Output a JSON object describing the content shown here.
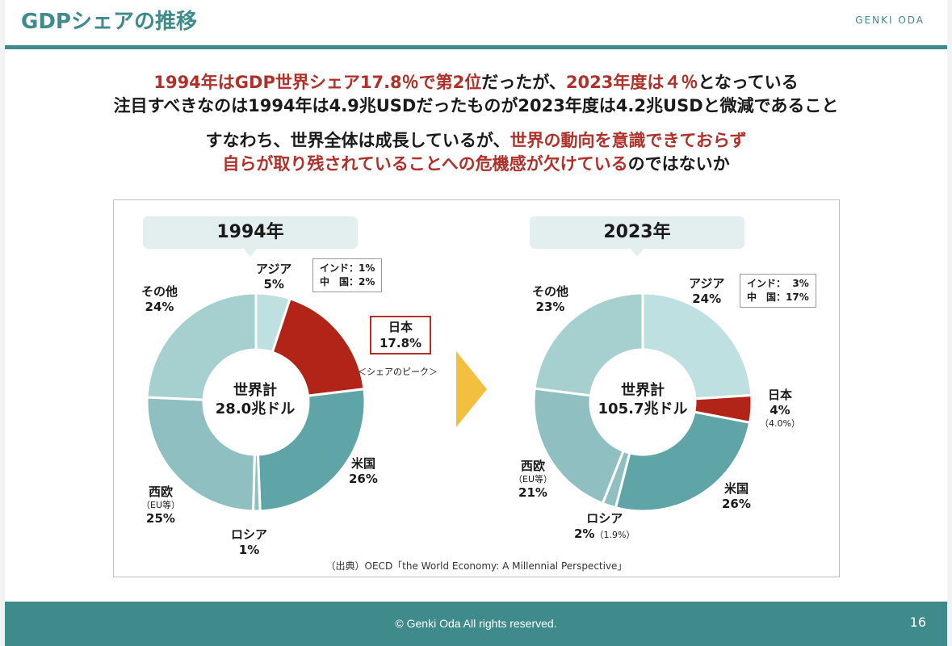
{
  "header": {
    "title": "GDPシェアの推移",
    "brand": "GENKI ODA"
  },
  "message": {
    "line1": [
      {
        "t": "1994年はGDP世界シェア17.8％で第2位",
        "red": true
      },
      {
        "t": "だったが、",
        "red": false
      },
      {
        "t": "2023年度は４％",
        "red": true
      },
      {
        "t": "となっている",
        "red": false
      }
    ],
    "line2": "注目すべきなのは1994年は4.9兆USDだったものが2023年度は4.2兆USDと微減であること",
    "line3": [
      {
        "t": "すなわち、世界全体は成長しているが、",
        "red": false
      },
      {
        "t": "世界の動向を意識できておらず",
        "red": true
      }
    ],
    "line4": [
      {
        "t": "自らが取り残されていることへの危機感が欠けている",
        "red": true
      },
      {
        "t": "のではないか",
        "red": false
      }
    ]
  },
  "colors": {
    "accent": "#3f8a8a",
    "japan": "#b22418",
    "arrow": "#f2bf3e"
  },
  "chart_data": [
    {
      "type": "pie",
      "donut": true,
      "title": "1994年",
      "center_label": "世界計",
      "center_value": "28.0兆ドル",
      "slices": [
        {
          "name": "アジア",
          "value": 5,
          "label": "5%",
          "color": "#bfe0e0"
        },
        {
          "name": "日本",
          "value": 17.8,
          "label": "17.8%",
          "color": "#b22418"
        },
        {
          "name": "米国",
          "value": 26,
          "label": "26%",
          "color": "#5fa5a8"
        },
        {
          "name": "ロシア",
          "value": 1,
          "label": "1%",
          "color": "#8fbfc0"
        },
        {
          "name": "西欧",
          "sub": "（EU等）",
          "value": 25,
          "label": "25%",
          "color": "#8fbfc0"
        },
        {
          "name": "その他",
          "value": 24,
          "label": "24%",
          "color": "#a6cfd0"
        }
      ],
      "note": "インド：1%\n中　国：2%",
      "japan_note": "＜シェアのピーク＞"
    },
    {
      "type": "pie",
      "donut": true,
      "title": "2023年",
      "center_label": "世界計",
      "center_value": "105.7兆ドル",
      "slices": [
        {
          "name": "アジア",
          "value": 24,
          "label": "24%",
          "color": "#bfe0e0"
        },
        {
          "name": "日本",
          "value": 4,
          "label": "4%",
          "extra": "（4.0%）",
          "color": "#b22418"
        },
        {
          "name": "米国",
          "value": 26,
          "label": "26%",
          "color": "#5fa5a8"
        },
        {
          "name": "ロシア",
          "value": 2,
          "label": "2%",
          "extra": "（1.9%）",
          "color": "#8fbfc0"
        },
        {
          "name": "西欧",
          "sub": "（EU等）",
          "value": 21,
          "label": "21%",
          "color": "#8fbfc0"
        },
        {
          "name": "その他",
          "value": 23,
          "label": "23%",
          "color": "#a6cfd0"
        }
      ],
      "note": "インド：  3%\n中　国：17%"
    }
  ],
  "source": "（出典）OECD「the World Economy: A Millennial Perspective」",
  "footer": {
    "copyright": "© Genki Oda All rights reserved.",
    "page": "16"
  }
}
